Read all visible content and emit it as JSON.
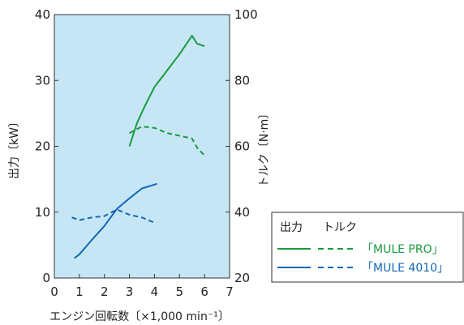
{
  "chart_data": {
    "type": "line",
    "title": "",
    "xlabel": "エンジン回転数〔×1,000 min⁻¹〕",
    "ylabel_left": "出力〔kW〕",
    "ylabel_right": "トルク〔N·m〕",
    "xlim": [
      0,
      7
    ],
    "ylim_left": [
      0,
      40
    ],
    "ylim_right": [
      20,
      100
    ],
    "x_ticks": [
      "0",
      "1",
      "2",
      "3",
      "4",
      "5",
      "6",
      "7"
    ],
    "y_left_ticks": [
      "0",
      "10",
      "20",
      "30",
      "40"
    ],
    "y_right_ticks": [
      "20",
      "40",
      "60",
      "80",
      "100"
    ],
    "plot_background": "#c6e6f6",
    "grid": false,
    "legend": {
      "placement": "bottom-right outside",
      "header_output": "出力",
      "header_torque": "トルク",
      "entries": [
        {
          "label": "「MULE PRO」",
          "color": "#1a9a3f"
        },
        {
          "label": "「MULE 4010」",
          "color": "#1468b4"
        }
      ]
    },
    "series": [
      {
        "name": "「MULE PRO」",
        "measure": "出力",
        "axis": "left",
        "color": "#1a9a3f",
        "dash": false,
        "points": [
          [
            3.0,
            20.0
          ],
          [
            3.3,
            23.5
          ],
          [
            3.6,
            26.0
          ],
          [
            4.0,
            29.0
          ],
          [
            4.5,
            31.5
          ],
          [
            5.0,
            34.0
          ],
          [
            5.5,
            36.8
          ],
          [
            5.7,
            35.6
          ],
          [
            6.0,
            35.2
          ]
        ]
      },
      {
        "name": "「MULE PRO」",
        "measure": "トルク",
        "axis": "right",
        "color": "#1a9a3f",
        "dash": true,
        "points": [
          [
            3.0,
            64
          ],
          [
            3.5,
            66
          ],
          [
            4.0,
            65.6
          ],
          [
            4.5,
            64
          ],
          [
            5.0,
            63.2
          ],
          [
            5.5,
            62.4
          ],
          [
            5.7,
            59.6
          ],
          [
            6.0,
            57.2
          ]
        ]
      },
      {
        "name": "「MULE 4010」",
        "measure": "出力",
        "axis": "left",
        "color": "#1468b4",
        "dash": false,
        "points": [
          [
            0.8,
            3.0
          ],
          [
            1.0,
            3.6
          ],
          [
            1.5,
            5.8
          ],
          [
            2.0,
            7.9
          ],
          [
            2.5,
            10.5
          ],
          [
            3.0,
            12.1
          ],
          [
            3.5,
            13.6
          ],
          [
            4.1,
            14.3
          ]
        ]
      },
      {
        "name": "「MULE 4010」",
        "measure": "トルク",
        "axis": "right",
        "color": "#1468b4",
        "dash": true,
        "points": [
          [
            0.7,
            38.4
          ],
          [
            1.0,
            37.6
          ],
          [
            1.5,
            38.4
          ],
          [
            2.0,
            38.8
          ],
          [
            2.5,
            40.8
          ],
          [
            3.0,
            39.2
          ],
          [
            3.5,
            38.4
          ],
          [
            4.0,
            36.8
          ]
        ]
      }
    ]
  }
}
